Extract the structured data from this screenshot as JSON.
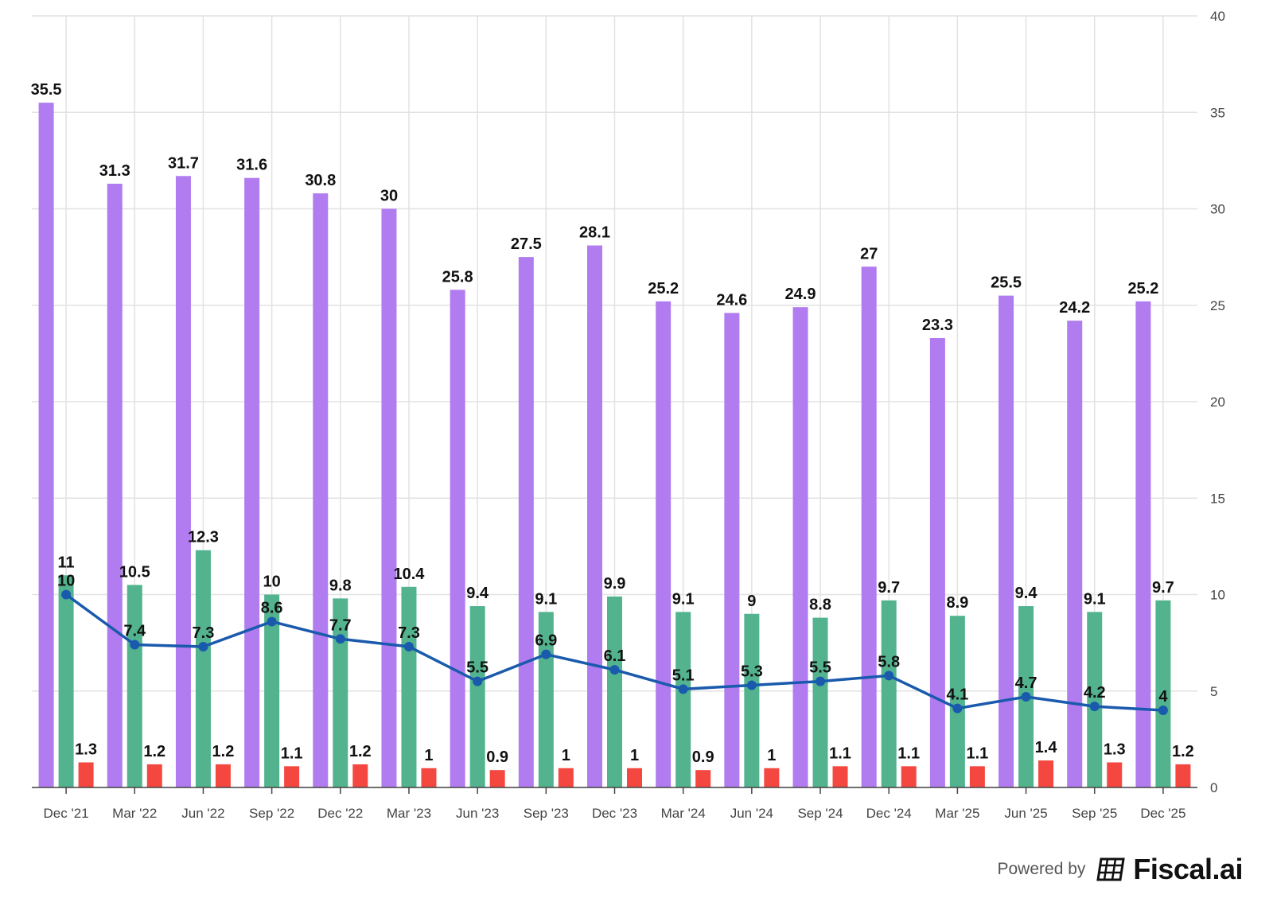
{
  "chart_data": {
    "type": "bar",
    "categories": [
      "Dec '21",
      "Mar '22",
      "Jun '22",
      "Sep '22",
      "Dec '22",
      "Mar '23",
      "Jun '23",
      "Sep '23",
      "Dec '23",
      "Mar '24",
      "Jun '24",
      "Sep '24",
      "Dec '24",
      "Mar '25",
      "Jun '25",
      "Sep '25",
      "Dec '25"
    ],
    "series": [
      {
        "name": "Series A",
        "kind": "bar",
        "color": "#b07cef",
        "values": [
          35.5,
          31.3,
          31.7,
          31.6,
          30.8,
          30,
          25.8,
          27.5,
          28.1,
          25.2,
          24.6,
          24.9,
          27,
          23.3,
          25.5,
          24.2,
          25.2
        ]
      },
      {
        "name": "Series B",
        "kind": "bar",
        "color": "#52b38e",
        "values": [
          11,
          10.5,
          12.3,
          10,
          9.8,
          10.4,
          9.4,
          9.1,
          9.9,
          9.1,
          9,
          8.8,
          9.7,
          8.9,
          9.4,
          9.1,
          9.7
        ]
      },
      {
        "name": "Series C",
        "kind": "bar",
        "color": "#f4473f",
        "values": [
          1.3,
          1.2,
          1.2,
          1.1,
          1.2,
          1,
          0.9,
          1,
          1,
          0.9,
          1,
          1.1,
          1.1,
          1.1,
          1.4,
          1.3,
          1.2
        ]
      },
      {
        "name": "Series D",
        "kind": "line",
        "color": "#1a5aad",
        "values": [
          10,
          7.4,
          7.3,
          8.6,
          7.7,
          7.3,
          5.5,
          6.9,
          6.1,
          5.1,
          5.3,
          5.5,
          5.8,
          4.1,
          4.7,
          4.2,
          4
        ]
      }
    ],
    "ylim": [
      0,
      40
    ],
    "yticks": [
      0,
      5,
      10,
      15,
      20,
      25,
      30,
      35,
      40
    ],
    "y_axis_side": "right",
    "grid": true
  },
  "footer": {
    "powered_by": "Powered by",
    "brand": "Fiscal.ai"
  }
}
